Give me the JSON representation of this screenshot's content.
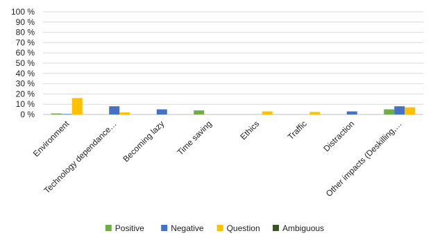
{
  "chart_data": {
    "type": "bar",
    "categories": [
      "Environment",
      "Technology dependance…",
      "Becoming lazy",
      "Time saving",
      "Ethics",
      "Traffic",
      "Distraction",
      "Other impacts (Deskilling,…"
    ],
    "series": [
      {
        "name": "Positive",
        "color": "#70ad47",
        "values": [
          1,
          0,
          0,
          4,
          0,
          0,
          0,
          5
        ]
      },
      {
        "name": "Negative",
        "color": "#4472c4",
        "values": [
          0.5,
          8,
          5,
          0,
          0,
          0,
          3,
          8
        ]
      },
      {
        "name": "Question",
        "color": "#ffc000",
        "values": [
          16,
          2,
          0,
          0,
          3,
          2.5,
          0,
          7
        ]
      },
      {
        "name": "Ambiguous",
        "color": "#375623",
        "values": [
          0,
          0,
          0,
          0,
          0,
          0,
          0,
          0
        ]
      }
    ],
    "ylim": [
      0,
      100
    ],
    "yticks": [
      "0 %",
      "10 %",
      "20 %",
      "30 %",
      "40 %",
      "50 %",
      "60 %",
      "70 %",
      "80 %",
      "90 %",
      "100 %"
    ],
    "grid": true,
    "legend_position": "bottom"
  }
}
